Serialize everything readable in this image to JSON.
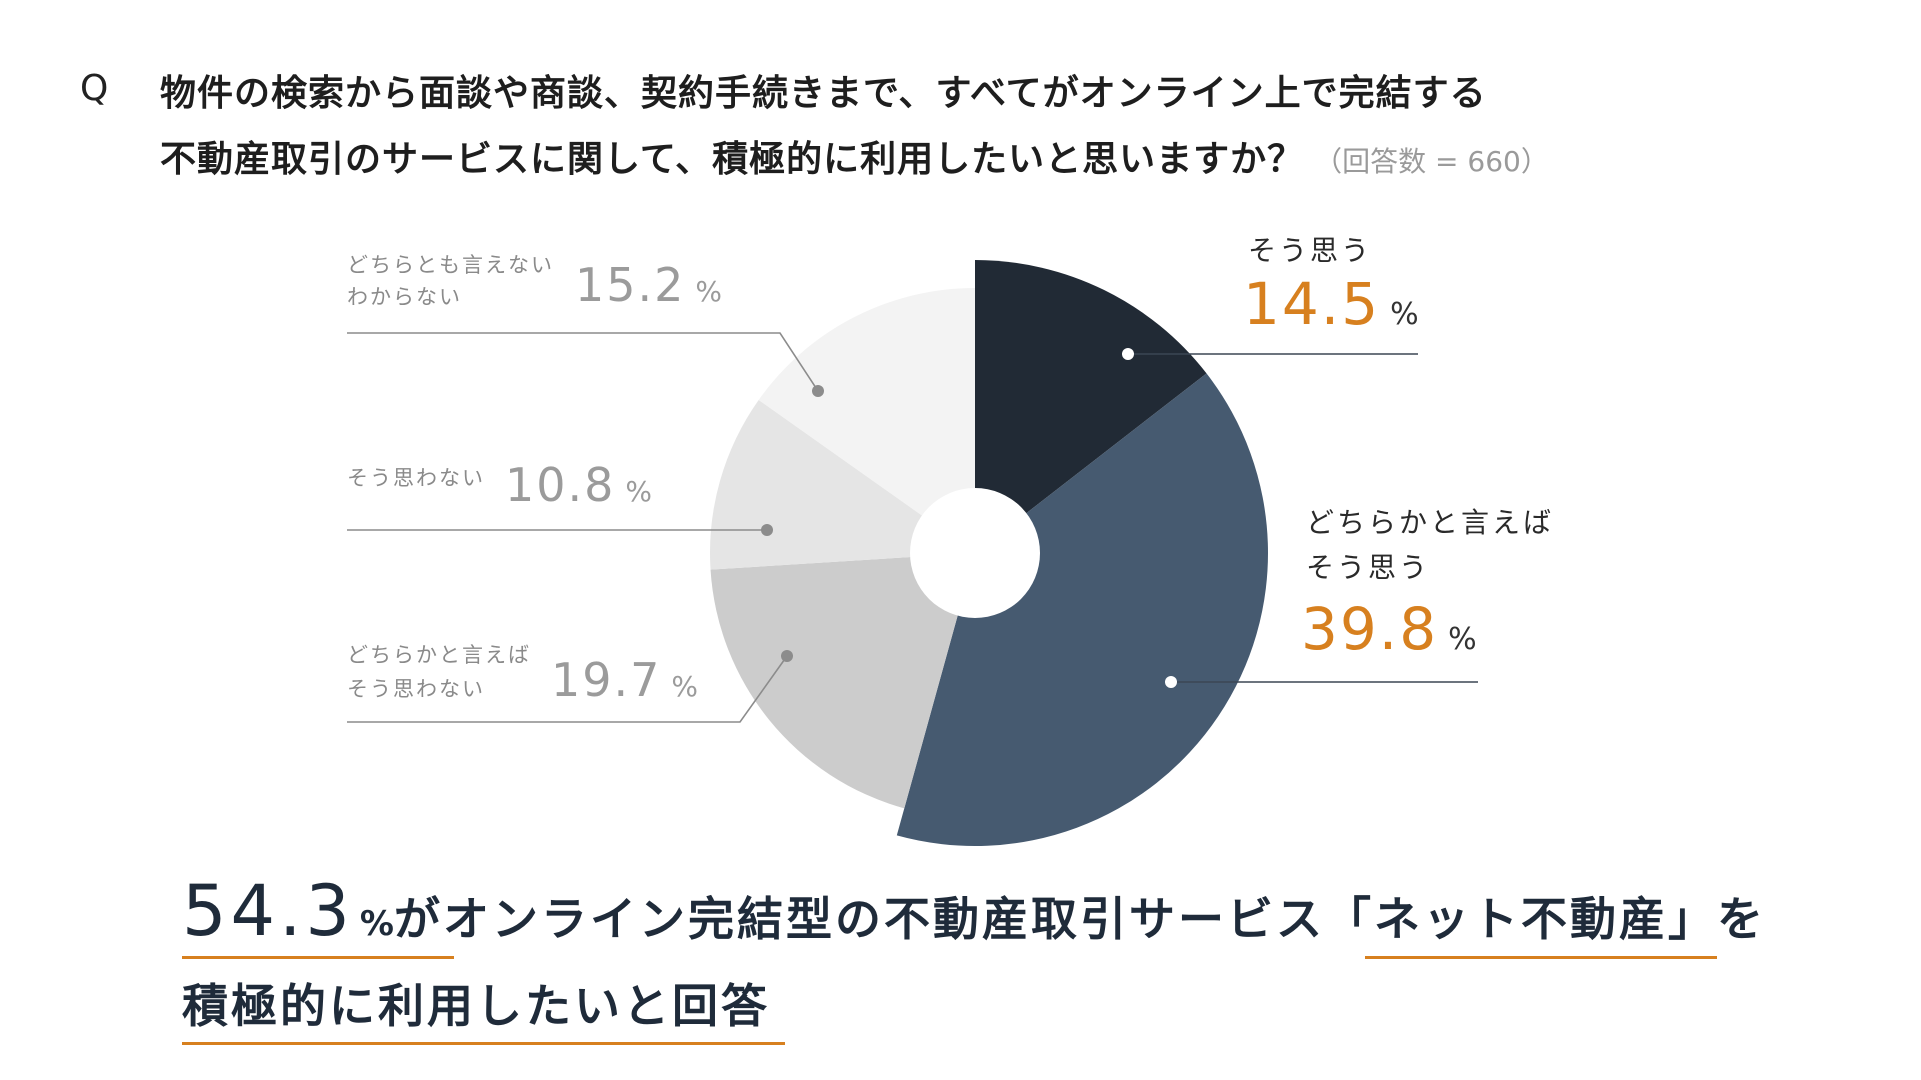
{
  "question": {
    "mark": "Q",
    "line1": "物件の検索から面談や商談、契約手続きまで、すべてがオンライン上で完結する",
    "line2": "不動産取引のサービスに関して、積極的に利用したいと思いますか？",
    "note": "（回答数 = 660）"
  },
  "chart_data": {
    "type": "pie",
    "title": "",
    "categories": [
      "そう思う",
      "どちらかと言えばそう思う",
      "どちらかと言えばそう思わない",
      "そう思わない",
      "どちらとも言えないわからない"
    ],
    "values": [
      14.5,
      39.8,
      19.7,
      10.8,
      15.2
    ],
    "unit": "%",
    "colors": [
      "#212a35",
      "#465a70",
      "#cccccc",
      "#e5e5e5",
      "#f3f3f3"
    ],
    "donut_hole": true
  },
  "labels": {
    "s1_line1": "そう思う",
    "s2_line1": "どちらかと言えば",
    "s2_line2": "そう思う",
    "s3_line1": "どちらかと言えば",
    "s3_line2": "そう思わない",
    "s4_line1": "そう思わない",
    "s5_line1": "どちらとも言えない",
    "s5_line2": "わからない",
    "v1": "14.5",
    "v2": "39.8",
    "v3": "19.7",
    "v4": "10.8",
    "v5": "15.2",
    "pct": "%"
  },
  "conclusion": {
    "big_number": "54.3",
    "pct": "%",
    "row1_text": "がオンライン完結型の不動産取引サービス「ネット不動産」を",
    "row2_text": "積極的に利用したいと回答"
  },
  "colors": {
    "accent": "#d7801f",
    "navy": "#1f2b3a"
  }
}
